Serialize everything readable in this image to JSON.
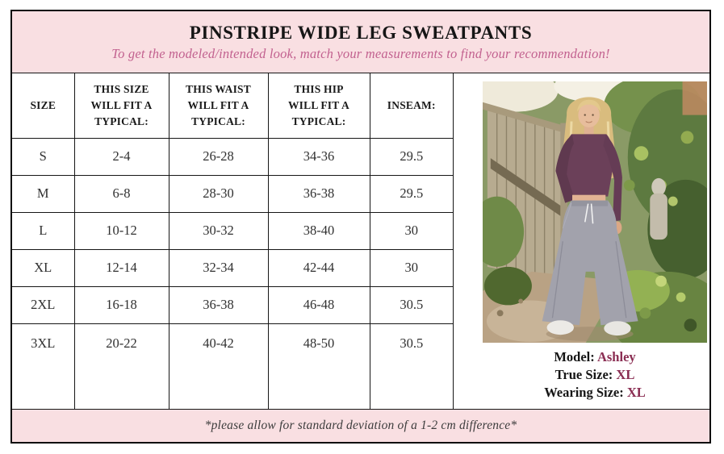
{
  "header": {
    "title": "PINSTRIPE WIDE LEG SWEATPANTS",
    "subtitle": "To get the modeled/intended look, match your measurements to find your recommendation!"
  },
  "size_table": {
    "columns": [
      "SIZE",
      "THIS SIZE WILL FIT A TYPICAL:",
      "THIS WAIST WILL FIT A TYPICAL:",
      "THIS HIP WILL FIT A TYPICAL:",
      "INSEAM:"
    ],
    "rows": [
      [
        "S",
        "2-4",
        "26-28",
        "34-36",
        "29.5"
      ],
      [
        "M",
        "6-8",
        "28-30",
        "36-38",
        "29.5"
      ],
      [
        "L",
        "10-12",
        "30-32",
        "38-40",
        "30"
      ],
      [
        "XL",
        "12-14",
        "32-34",
        "42-44",
        "30"
      ],
      [
        "2XL",
        "16-18",
        "36-38",
        "46-48",
        "30.5"
      ],
      [
        "3XL",
        "20-22",
        "40-42",
        "48-50",
        "30.5"
      ]
    ]
  },
  "model_info": {
    "lines": [
      {
        "label": "Model:",
        "value": "Ashley"
      },
      {
        "label": "True Size:",
        "value": "XL"
      },
      {
        "label": "Wearing Size:",
        "value": "XL"
      }
    ]
  },
  "footer": {
    "note": "*please allow for standard deviation of a 1-2 cm difference*"
  },
  "photo": {
    "name": "model-photo"
  },
  "colors": {
    "pink_background": "#f9dfe2",
    "subtitle_pink": "#c2618f",
    "accent_maroon": "#8a2d52"
  }
}
